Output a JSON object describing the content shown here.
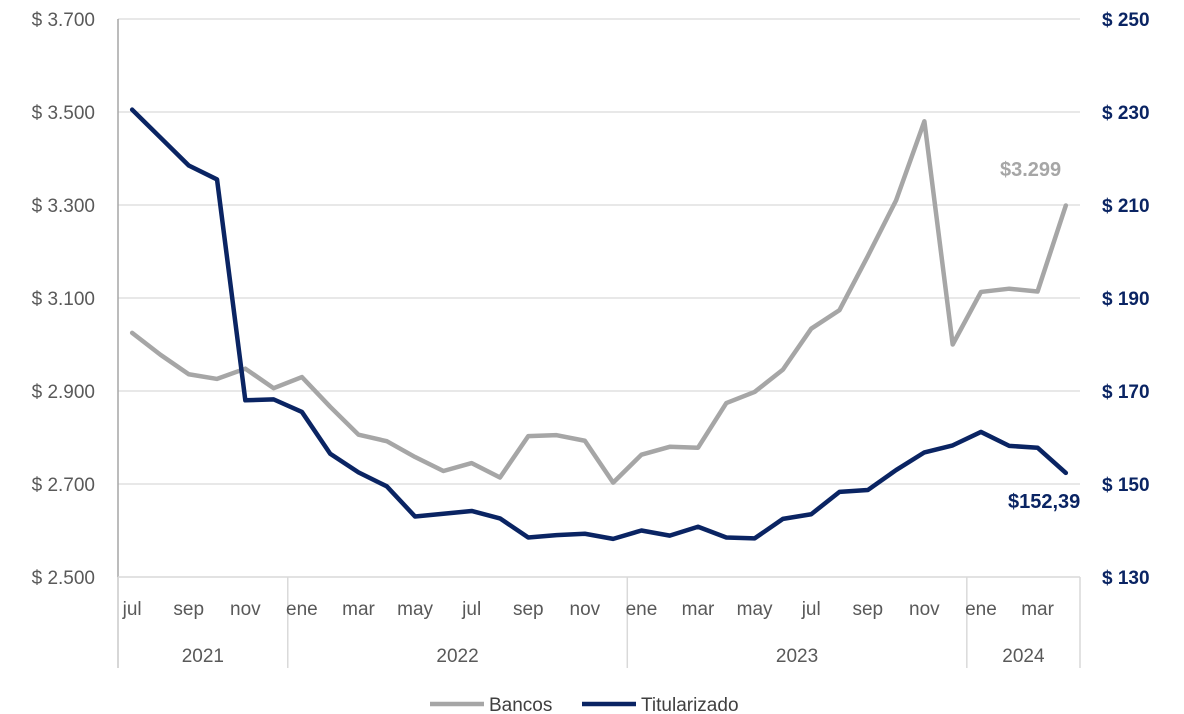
{
  "chart_data": {
    "type": "line",
    "x_months": [
      "jul",
      "ago",
      "sep",
      "oct",
      "nov",
      "dic",
      "ene",
      "feb",
      "mar",
      "abr",
      "may",
      "jun",
      "jul",
      "ago",
      "sep",
      "oct",
      "nov",
      "dic",
      "ene",
      "feb",
      "mar",
      "abr",
      "may",
      "jun",
      "jul",
      "ago",
      "sep",
      "oct",
      "nov",
      "dic",
      "ene",
      "feb",
      "mar",
      "abr"
    ],
    "x_tick_labels": [
      "jul",
      "sep",
      "nov",
      "ene",
      "mar",
      "may",
      "jul",
      "sep",
      "nov",
      "ene",
      "mar",
      "may",
      "jul",
      "sep",
      "nov",
      "ene",
      "mar"
    ],
    "year_labels": [
      "2021",
      "2022",
      "2023",
      "2024"
    ],
    "series": [
      {
        "name": "Bancos",
        "axis": "left",
        "color": "#a6a6a6",
        "values": [
          3025,
          2978,
          2936,
          2926,
          2948,
          2906,
          2930,
          2866,
          2806,
          2792,
          2758,
          2728,
          2745,
          2714,
          2803,
          2805,
          2793,
          2703,
          2763,
          2780,
          2778,
          2874,
          2898,
          2946,
          3034,
          3074,
          3190,
          3310,
          3480,
          3000,
          3113,
          3120,
          3114,
          3299
        ]
      },
      {
        "name": "Titularizado",
        "axis": "right",
        "color": "#0a2463",
        "values": [
          230.5,
          224.5,
          218.5,
          215.5,
          168.0,
          168.2,
          165.5,
          156.5,
          152.5,
          149.5,
          143.0,
          143.6,
          144.2,
          142.6,
          138.5,
          139.0,
          139.3,
          138.2,
          140.0,
          138.9,
          140.8,
          138.5,
          138.3,
          142.5,
          143.5,
          148.3,
          148.7,
          153.0,
          156.8,
          158.3,
          161.2,
          158.2,
          157.8,
          152.39
        ]
      }
    ],
    "left_axis": {
      "min": 2500,
      "max": 3700,
      "ticks": [
        {
          "v": 3700,
          "label": "$ 3.700"
        },
        {
          "v": 3500,
          "label": "$ 3.500"
        },
        {
          "v": 3300,
          "label": "$ 3.300"
        },
        {
          "v": 3100,
          "label": "$ 3.100"
        },
        {
          "v": 2900,
          "label": "$ 2.900"
        },
        {
          "v": 2700,
          "label": "$ 2.700"
        },
        {
          "v": 2500,
          "label": "$ 2.500"
        }
      ]
    },
    "right_axis": {
      "min": 130,
      "max": 250,
      "ticks": [
        {
          "v": 250,
          "label": "$ 250"
        },
        {
          "v": 230,
          "label": "$ 230"
        },
        {
          "v": 210,
          "label": "$ 210"
        },
        {
          "v": 190,
          "label": "$ 190"
        },
        {
          "v": 170,
          "label": "$ 170"
        },
        {
          "v": 150,
          "label": "$ 150"
        },
        {
          "v": 130,
          "label": "$ 130"
        }
      ]
    },
    "annotations": {
      "bancos_last": "$3.299",
      "titularizado_last": "$152,39"
    },
    "grid": true,
    "legend_position": "bottom"
  },
  "legend": {
    "bancos": "Bancos",
    "titularizado": "Titularizado"
  }
}
